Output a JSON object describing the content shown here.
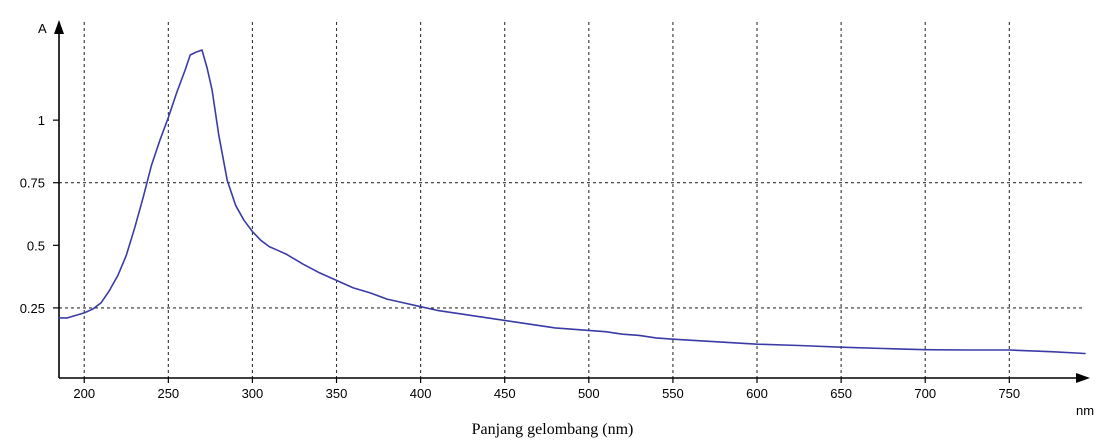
{
  "chart_data": {
    "type": "line",
    "xlabel": "Panjang gelombang (nm)",
    "x_unit": "nm",
    "y_unit": "A",
    "xlim": [
      185,
      795
    ],
    "ylim": [
      -0.03,
      1.4
    ],
    "grid": true,
    "x_ticks": [
      200,
      250,
      300,
      350,
      400,
      450,
      500,
      550,
      600,
      650,
      700,
      750
    ],
    "x_tick_labels": [
      "200",
      "250",
      "300",
      "350",
      "400",
      "450",
      "500",
      "550",
      "600",
      "650",
      "700",
      "750"
    ],
    "x_gridlines": [
      200,
      250,
      300,
      350,
      400,
      450,
      500,
      550,
      600,
      650,
      700,
      750
    ],
    "y_ticks": [
      0.25,
      0.5,
      0.75,
      1
    ],
    "y_tick_labels": [
      "0.25",
      "0.5",
      "0.75",
      "1"
    ],
    "y_gridlines": [
      0.25,
      0.75
    ],
    "colors": {
      "line": "#3b3ba8",
      "grid": "#333333",
      "axis": "#000000"
    },
    "series": [
      {
        "x": [
          185,
          190,
          195,
          200,
          205,
          210,
          215,
          220,
          225,
          230,
          235,
          240,
          245,
          250,
          255,
          260,
          263,
          266,
          270,
          273,
          276,
          280,
          285,
          290,
          295,
          300,
          305,
          310,
          315,
          320,
          325,
          330,
          340,
          350,
          360,
          370,
          380,
          390,
          400,
          410,
          420,
          430,
          440,
          450,
          460,
          470,
          480,
          490,
          500,
          510,
          520,
          530,
          540,
          550,
          575,
          600,
          625,
          650,
          675,
          700,
          725,
          750,
          775,
          795
        ],
        "y": [
          0.21,
          0.21,
          0.22,
          0.23,
          0.245,
          0.27,
          0.32,
          0.38,
          0.46,
          0.57,
          0.69,
          0.82,
          0.92,
          1.01,
          1.11,
          1.2,
          1.26,
          1.27,
          1.28,
          1.21,
          1.12,
          0.94,
          0.76,
          0.66,
          0.6,
          0.555,
          0.52,
          0.495,
          0.48,
          0.465,
          0.445,
          0.425,
          0.39,
          0.36,
          0.33,
          0.31,
          0.285,
          0.27,
          0.255,
          0.24,
          0.23,
          0.22,
          0.21,
          0.2,
          0.19,
          0.18,
          0.17,
          0.165,
          0.16,
          0.155,
          0.145,
          0.14,
          0.13,
          0.125,
          0.115,
          0.105,
          0.1,
          0.093,
          0.088,
          0.083,
          0.082,
          0.082,
          0.075,
          0.068
        ]
      }
    ]
  }
}
